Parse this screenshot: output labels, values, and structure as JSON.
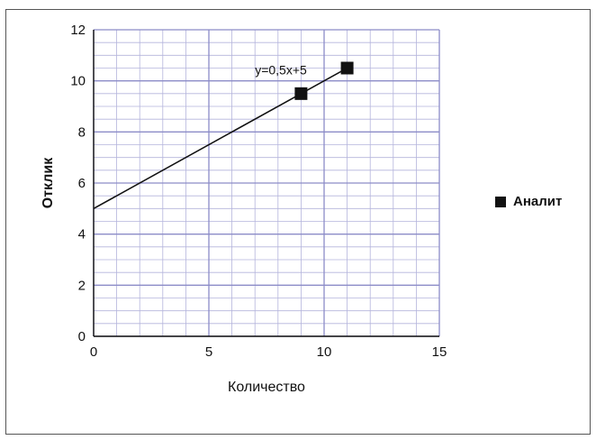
{
  "chart_data": {
    "type": "scatter",
    "xlabel": "Количество",
    "ylabel": "Отклик",
    "xlim": [
      0,
      15
    ],
    "ylim": [
      0,
      12
    ],
    "x_ticks": [
      0,
      5,
      10,
      15
    ],
    "y_ticks": [
      0,
      2,
      4,
      6,
      8,
      10,
      12
    ],
    "grid": true,
    "legend_position": "right",
    "series": [
      {
        "name": "Аналит",
        "points": [
          {
            "x": 9,
            "y": 9.5
          },
          {
            "x": 11,
            "y": 10.5
          }
        ]
      }
    ],
    "trendline": {
      "equation": "y=0,5x+5",
      "slope": 0.5,
      "intercept": 5,
      "x_range": [
        0,
        11
      ]
    },
    "colors": {
      "marker": "#111111",
      "major_grid": "#8c8cc8",
      "minor_grid": "#b4b4dc",
      "line": "#111111"
    }
  }
}
